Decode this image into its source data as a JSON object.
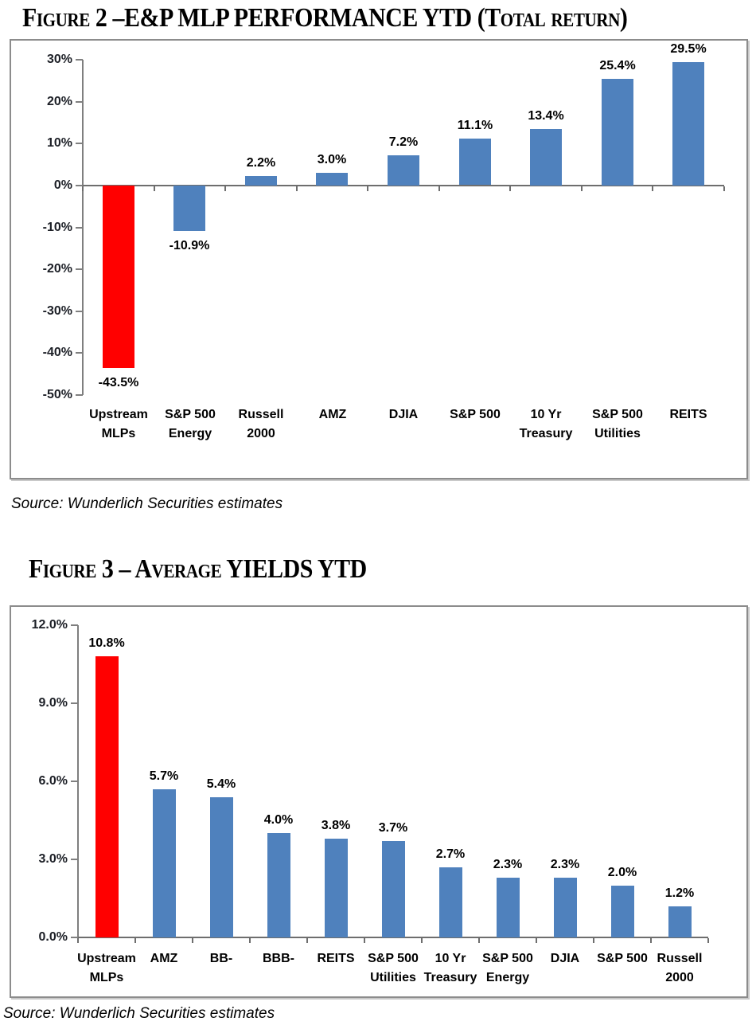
{
  "figure2": {
    "title": "Figure 2 –E&P MLP PERFORMANCE YTD (Total return)",
    "source": "Source: Wunderlich Securities estimates",
    "chart_data": {
      "type": "bar",
      "title": "E&P MLP Performance YTD (Total return)",
      "xlabel": "",
      "ylabel": "",
      "grid": false,
      "legend": false,
      "highlight_color": "#ff0000",
      "default_color": "#4f81bd",
      "ylim": [
        -50,
        30
      ],
      "yticks": {
        "values": [
          30,
          20,
          10,
          0,
          -10,
          -20,
          -30,
          -40,
          -50
        ],
        "labels": [
          "30%",
          "20%",
          "10%",
          "0%",
          "-10%",
          "-20%",
          "-30%",
          "-40%",
          "-50%"
        ]
      },
      "categories": [
        "Upstream\nMLPs",
        "S&P 500\nEnergy",
        "Russell\n2000",
        "AMZ",
        "DJIA",
        "S&P 500",
        "10 Yr\nTreasury",
        "S&P 500\nUtilities",
        "REITS"
      ],
      "values": [
        -43.5,
        -10.9,
        2.2,
        3.0,
        7.2,
        11.1,
        13.4,
        25.4,
        29.5
      ],
      "data_labels": [
        "-43.5%",
        "-10.9%",
        "2.2%",
        "3.0%",
        "7.2%",
        "11.1%",
        "13.4%",
        "25.4%",
        "29.5%"
      ],
      "bar_colors": [
        "#ff0000",
        "#4f81bd",
        "#4f81bd",
        "#4f81bd",
        "#4f81bd",
        "#4f81bd",
        "#4f81bd",
        "#4f81bd",
        "#4f81bd"
      ]
    }
  },
  "figure3": {
    "title": "Figure 3 – Average YIELDS YTD",
    "source": "Source: Wunderlich Securities estimates",
    "chart_data": {
      "type": "bar",
      "title": "Average Yields YTD",
      "xlabel": "",
      "ylabel": "",
      "grid": false,
      "legend": false,
      "highlight_color": "#ff0000",
      "default_color": "#4f81bd",
      "ylim": [
        0,
        12
      ],
      "yticks": {
        "values": [
          12,
          9,
          6,
          3,
          0
        ],
        "labels": [
          "12.0%",
          "9.0%",
          "6.0%",
          "3.0%",
          "0.0%"
        ]
      },
      "categories": [
        "Upstream\nMLPs",
        "AMZ",
        "BB-",
        "BBB-",
        "REITS",
        "S&P 500\nUtilities",
        "10 Yr\nTreasury",
        "S&P 500\nEnergy",
        "DJIA",
        "S&P 500",
        "Russell\n2000"
      ],
      "values": [
        10.8,
        5.7,
        5.4,
        4.0,
        3.8,
        3.7,
        2.7,
        2.3,
        2.3,
        2.0,
        1.2
      ],
      "data_labels": [
        "10.8%",
        "5.7%",
        "5.4%",
        "4.0%",
        "3.8%",
        "3.7%",
        "2.7%",
        "2.3%",
        "2.3%",
        "2.0%",
        "1.2%"
      ],
      "bar_colors": [
        "#ff0000",
        "#4f81bd",
        "#4f81bd",
        "#4f81bd",
        "#4f81bd",
        "#4f81bd",
        "#4f81bd",
        "#4f81bd",
        "#4f81bd",
        "#4f81bd",
        "#4f81bd"
      ]
    }
  }
}
